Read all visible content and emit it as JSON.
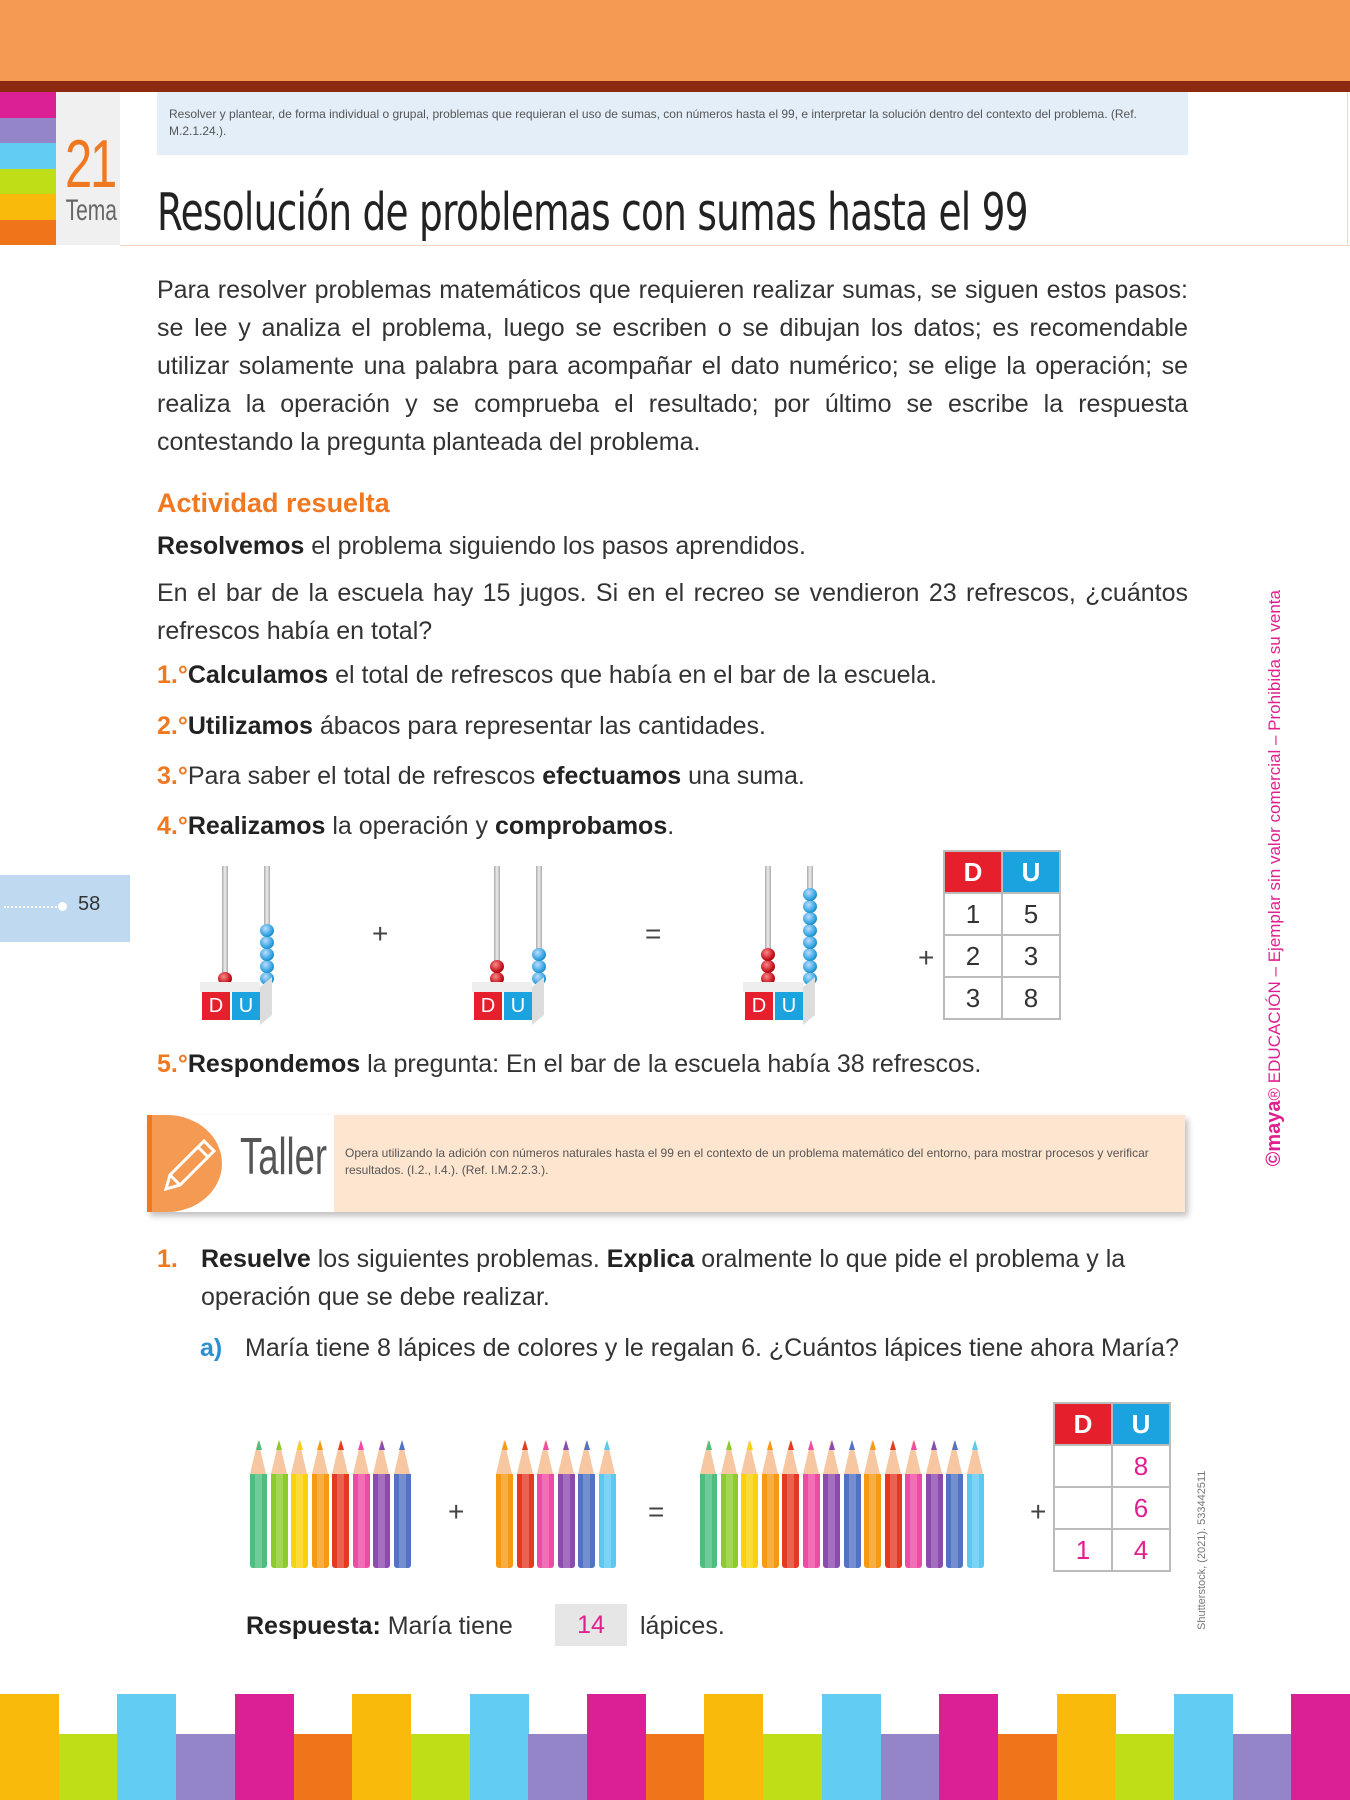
{
  "header": {
    "tema_number": "21",
    "tema_label": "Tema",
    "objective": "Resolver y plantear, de forma individual o grupal, problemas que requieran el uso de sumas, con números hasta el 99, e interpretar la solución dentro del contexto del problema. (Ref. M.2.1.24.).",
    "title": "Resolución de problemas con sumas hasta el 99",
    "tab_colors": [
      "#DB1F95",
      "#9385C8",
      "#63CCF2",
      "#BFDE18",
      "#F9BA0B",
      "#F07419"
    ]
  },
  "intro": "Para resolver problemas matemáticos que requieren realizar sumas, se siguen estos pasos: se lee y analiza el problema, luego se escriben o se dibujan los datos; es recomendable utilizar solamente una palabra para acompañar el dato numérico; se elige la operación; se realiza la operación y se comprueba el resultado; por último se escribe la respuesta contestando la pregunta planteada del problema.",
  "activity": {
    "heading": "Actividad resuelta",
    "lead_bold": "Resolvemos",
    "lead_rest": " el problema siguiendo los pasos aprendidos.",
    "problem": "En el bar de la escuela hay 15 jugos. Si en el recreo se vendieron 23 refrescos, ¿cuántos refrescos había en total?",
    "steps": [
      {
        "n": "1.°",
        "a": "",
        "bold": "Calculamos",
        "b": " el total de refrescos que había en el bar de la escuela.",
        "bold2": "",
        "c": ""
      },
      {
        "n": "2.°",
        "a": "",
        "bold": "Utilizamos",
        "b": " ábacos para representar las cantidades.",
        "bold2": "",
        "c": ""
      },
      {
        "n": "3.°",
        "a": "Para saber el total de refrescos ",
        "bold": "efectuamos",
        "b": " una suma.",
        "bold2": "",
        "c": ""
      },
      {
        "n": "4.°",
        "a": "",
        "bold": "Realizamos",
        "b": " la operación y ",
        "bold2": "comprobamos",
        "c": "."
      },
      {
        "n": "5.°",
        "a": "",
        "bold": "Respondemos",
        "b": " la pregunta: En el bar de la escuela había 38 refrescos.",
        "bold2": "",
        "c": ""
      }
    ],
    "abaci": [
      {
        "d": 1,
        "u": 5
      },
      {
        "d": 2,
        "u": 3
      },
      {
        "d": 3,
        "u": 8
      }
    ],
    "plus": "+",
    "equals": "=",
    "table": {
      "h_d": "D",
      "h_u": "U",
      "rows": [
        [
          "1",
          "5"
        ],
        [
          "2",
          "3"
        ],
        [
          "3",
          "8"
        ]
      ]
    }
  },
  "page_number": "58",
  "taller": {
    "label": "Taller",
    "text": "Opera utilizando la adición con números naturales hasta el 99 en el contexto de un problema matemático del entorno, para mostrar procesos y verificar resultados. (I.2., I.4.). (Ref. I.M.2.2.3.)."
  },
  "exercise": {
    "num": "1.",
    "bold1": "Resuelve",
    "t1": " los siguientes problemas. ",
    "bold2": "Explica",
    "t2": " oralmente lo que pide el problema y la operación que se debe realizar.",
    "a_label": "a)",
    "a_text": "María tiene 8 lápices de colores y le regalan 6. ¿Cuántos lápices tiene ahora María?",
    "pencils_group1": [
      "#4DBE7F",
      "#8DCB2C",
      "#F9D20A",
      "#F79A12",
      "#E43A24",
      "#EE4BA4",
      "#8C4BAE",
      "#5272C4"
    ],
    "pencils_group2": [
      "#F79A12",
      "#E43A24",
      "#EE4BA4",
      "#8C4BAE",
      "#5272C4",
      "#5CC8F0"
    ],
    "table": {
      "h_d": "D",
      "h_u": "U",
      "rows": [
        [
          "",
          "8"
        ],
        [
          "",
          "6"
        ],
        [
          "1",
          "4"
        ]
      ]
    },
    "answer_label": "Respuesta:",
    "answer_pre": "María tiene",
    "answer_value": "14",
    "answer_post": "lápices."
  },
  "watermark": {
    "logo": "©maya",
    "text": "® EDUCACIÓN – Ejemplar sin valor comercial – Prohibida su venta"
  },
  "credit": "Shutterstock, (2021). 533442511",
  "stripes": {
    "tall": [
      "#F9BA0B",
      "#63CCF2",
      "#DB1F95"
    ],
    "short": [
      "#BFDE18",
      "#9385C8",
      "#F07419"
    ]
  }
}
